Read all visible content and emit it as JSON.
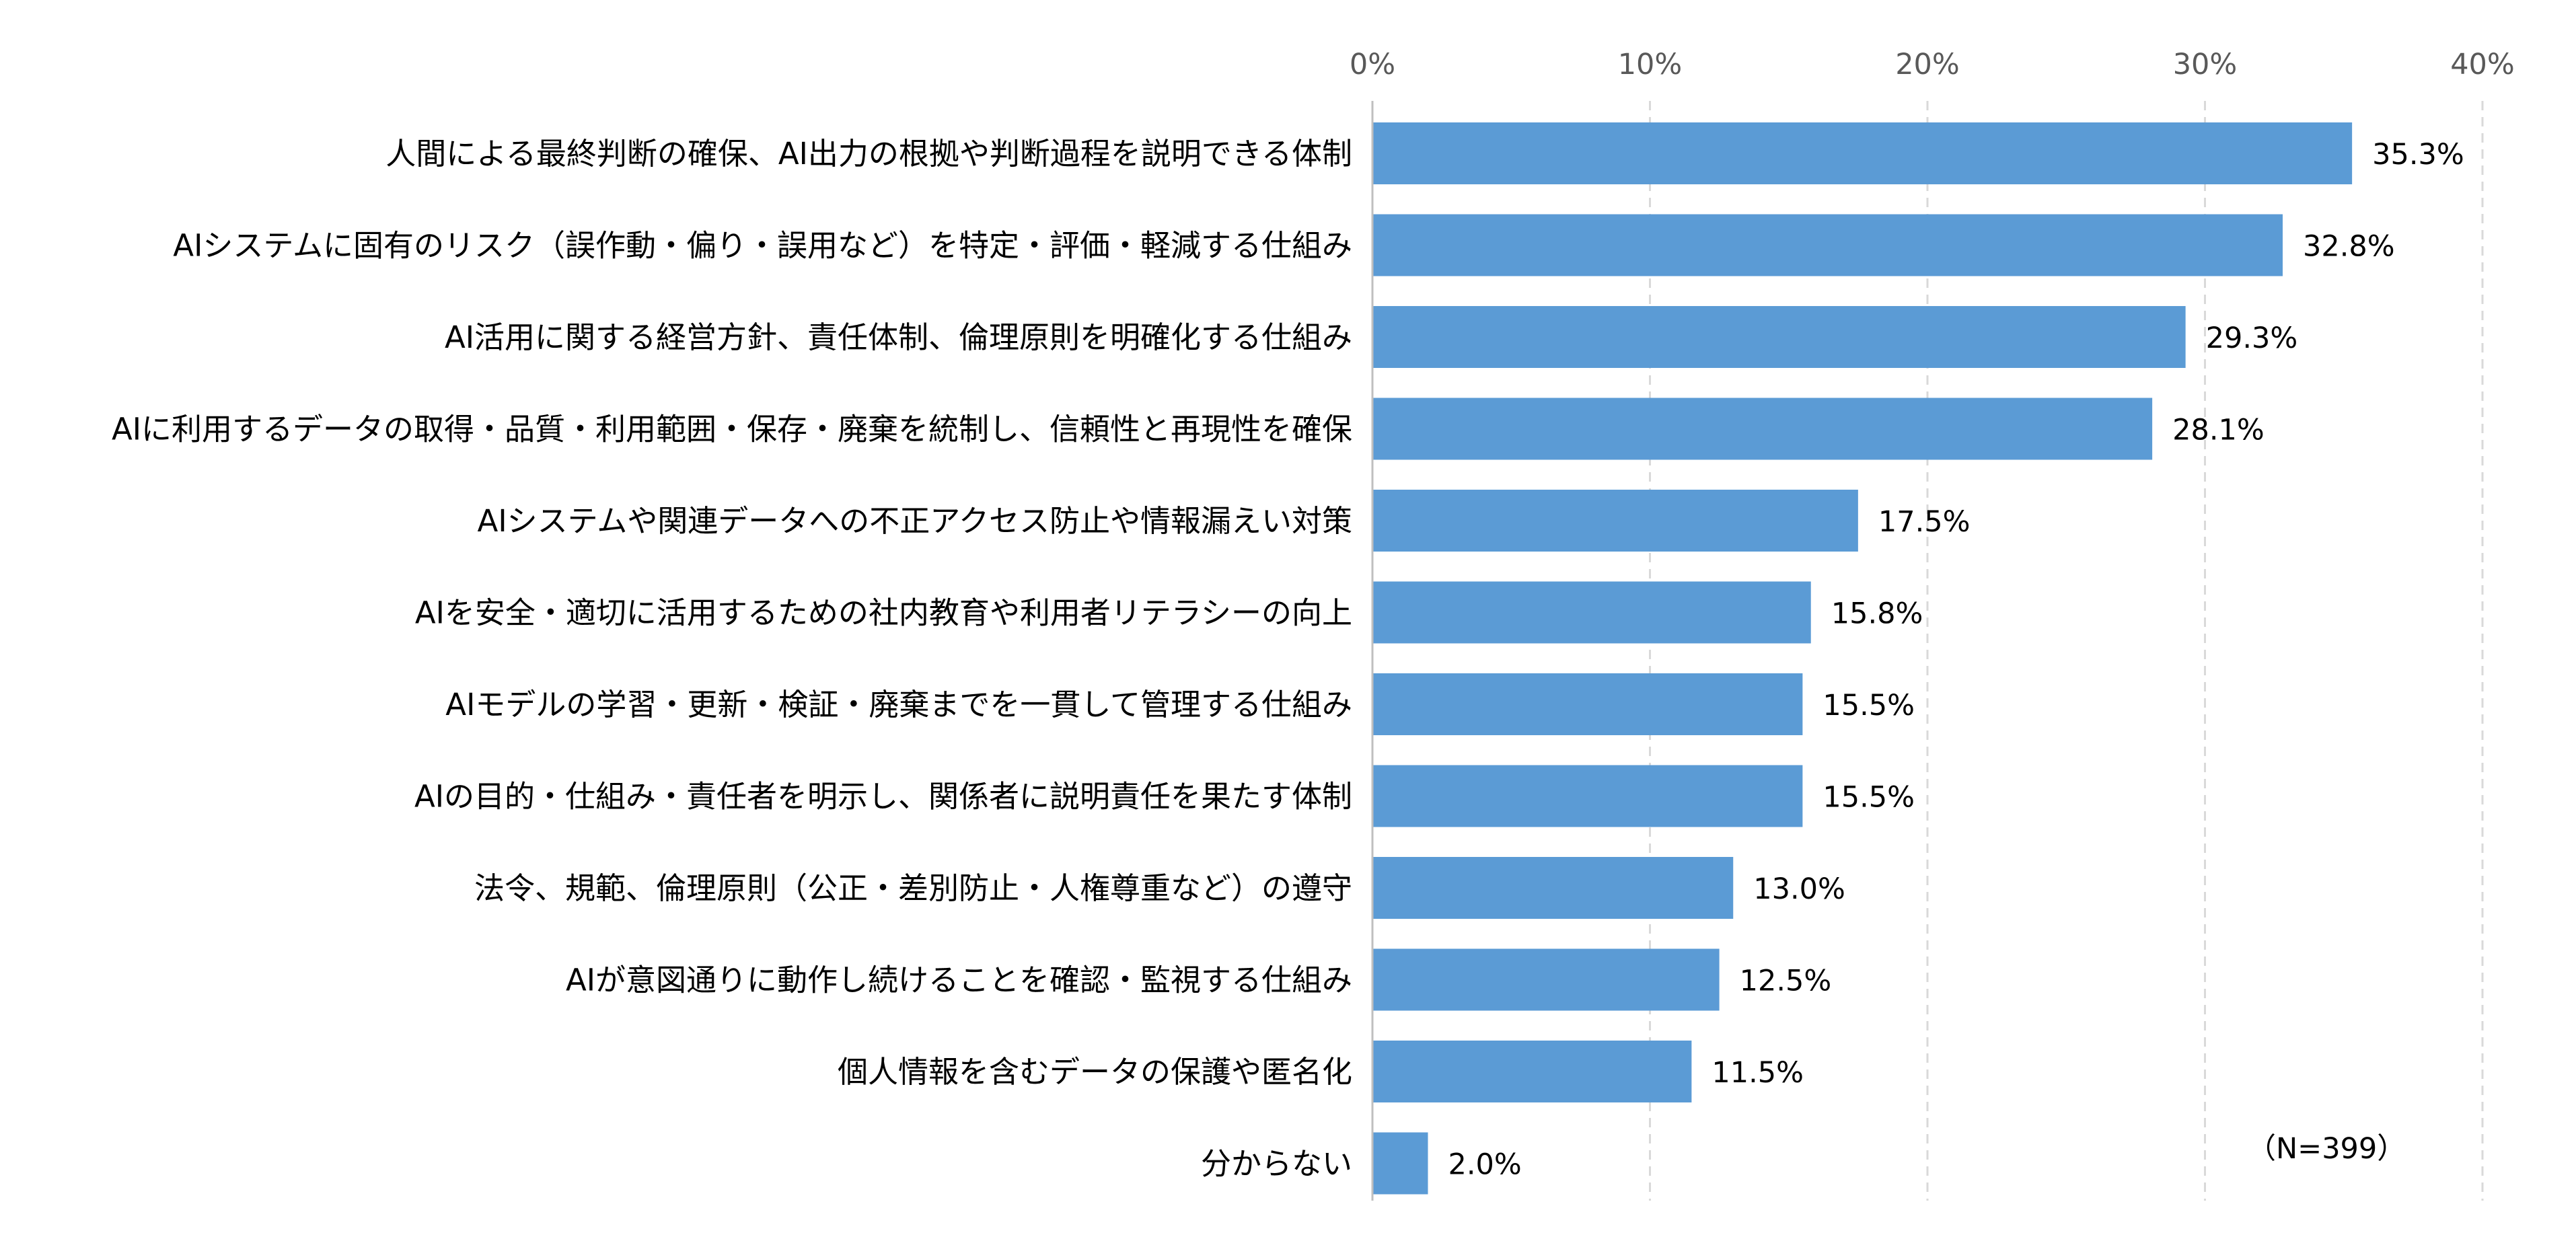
{
  "chart_data": {
    "type": "bar",
    "orientation": "horizontal",
    "categories": [
      "人間による最終判断の確保、AI出力の根拠や判断過程を説明できる体制",
      "AIシステムに固有のリスク（誤作動・偏り・誤用など）を特定・評価・軽減する仕組み",
      "AI活用に関する経営方針、責任体制、倫理原則を明確化する仕組み",
      "AIに利用するデータの取得・品質・利用範囲・保存・廃棄を統制し、信頼性と再現性を確保",
      "AIシステムや関連データへの不正アクセス防止や情報漏えい対策",
      "AIを安全・適切に活用するための社内教育や利用者リテラシーの向上",
      "AIモデルの学習・更新・検証・廃棄までを一貫して管理する仕組み",
      "AIの目的・仕組み・責任者を明示し、関係者に説明責任を果たす体制",
      "法令、規範、倫理原則（公正・差別防止・人権尊重など）の遵守",
      "AIが意図通りに動作し続けることを確認・監視する仕組み",
      "個人情報を含むデータの保護や匿名化",
      "分からない"
    ],
    "values": [
      35.3,
      32.8,
      29.3,
      28.1,
      17.5,
      15.8,
      15.5,
      15.5,
      13.0,
      12.5,
      11.5,
      2.0
    ],
    "value_labels": [
      "35.3%",
      "32.8%",
      "29.3%",
      "28.1%",
      "17.5%",
      "15.8%",
      "15.5%",
      "15.5%",
      "13.0%",
      "12.5%",
      "11.5%",
      "2.0%"
    ],
    "xlim": [
      0,
      40
    ],
    "x_ticks": [
      0,
      10,
      20,
      30,
      40
    ],
    "x_tick_labels": [
      "0%",
      "10%",
      "20%",
      "30%",
      "40%"
    ],
    "x_axis_position": "top",
    "grid": "vertical dashed",
    "legend": "none",
    "note": "（N=399）",
    "bar_color": "#5B9BD5",
    "grid_color": "#D9D9D9",
    "axis_color": "#BFBFBF",
    "tick_label_color": "#595959",
    "label_color": "#000000"
  }
}
